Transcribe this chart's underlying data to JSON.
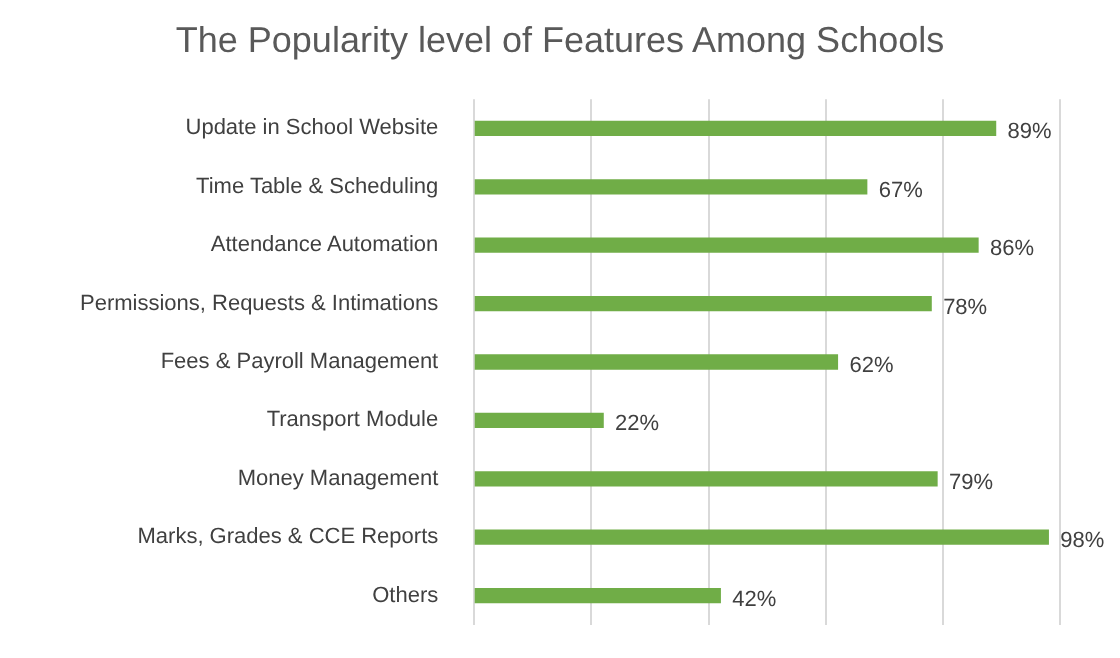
{
  "chart_data": {
    "type": "bar",
    "orientation": "horizontal",
    "title": "The Popularity level of Features Among Schools",
    "categories": [
      "Update in School Website",
      "Time Table & Scheduling",
      "Attendance Automation",
      "Permissions, Requests & Intimations",
      "Fees & Payroll Management",
      "Transport Module",
      "Money Management",
      "Marks, Grades & CCE Reports",
      "Others"
    ],
    "values": [
      89,
      67,
      86,
      78,
      62,
      22,
      79,
      98,
      42
    ],
    "value_labels": [
      "89%",
      "67%",
      "86%",
      "78%",
      "62%",
      "22%",
      "79%",
      "98%",
      "42%"
    ],
    "color": "#70ad47",
    "xlim": [
      0,
      100
    ],
    "xticks": [
      {
        "value": 0,
        "label": null
      },
      {
        "value": 20,
        "label": null
      },
      {
        "value": 40,
        "label": null
      },
      {
        "value": 60,
        "label": null
      },
      {
        "value": 80,
        "label": null
      },
      {
        "value": 100,
        "label": null
      }
    ],
    "grid": "x",
    "tick_labels": "y",
    "legend": false
  }
}
